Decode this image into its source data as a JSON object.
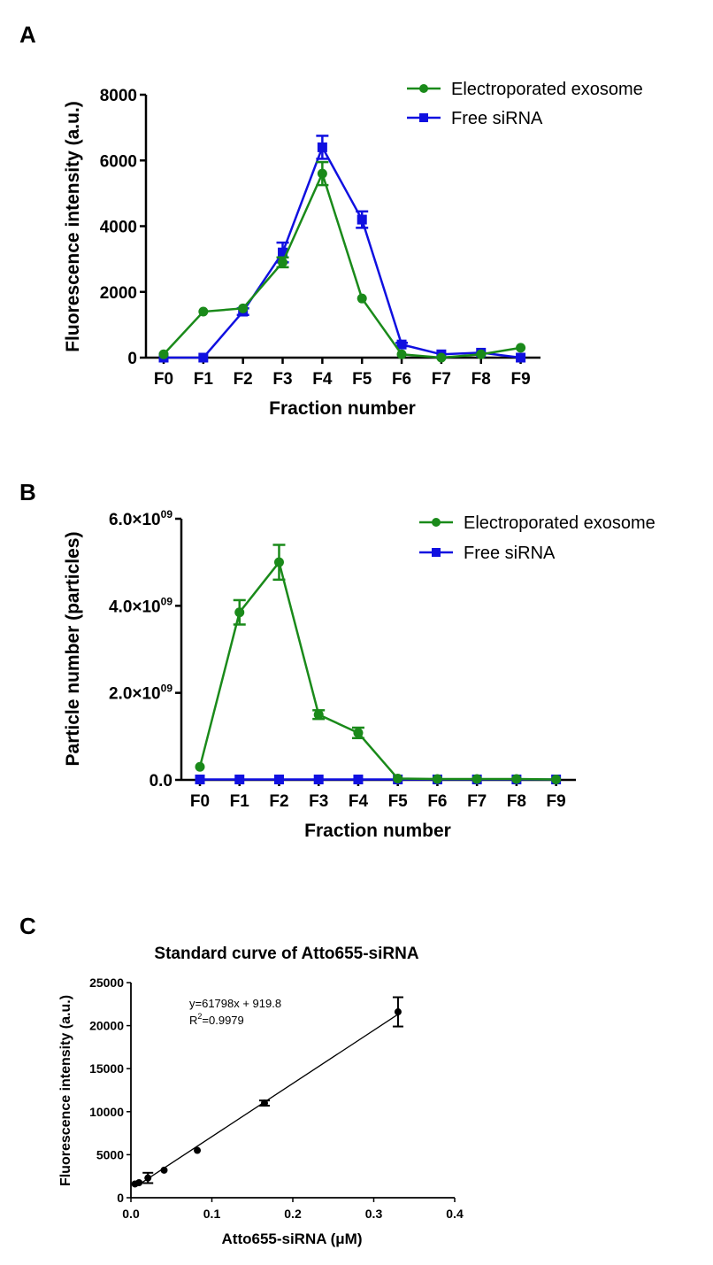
{
  "chart_data": [
    {
      "panel_label": "A",
      "type": "line",
      "title": "",
      "xlabel": "Fraction number",
      "ylabel": "Fluorescence intensity (a.u.)",
      "categories": [
        "F0",
        "F1",
        "F2",
        "F3",
        "F4",
        "F5",
        "F6",
        "F7",
        "F8",
        "F9"
      ],
      "ylim": [
        0,
        8000
      ],
      "yticks": [
        0,
        2000,
        4000,
        6000,
        8000
      ],
      "ytick_labels": [
        "0",
        "2000",
        "4000",
        "6000",
        "8000"
      ],
      "legend_position": "top-right",
      "series": [
        {
          "name": "Electroporated exosome",
          "color": "#1a8a1a",
          "marker": "circle",
          "values": [
            100,
            1400,
            1500,
            2900,
            5600,
            1800,
            100,
            0,
            100,
            300
          ],
          "errors": [
            0,
            0,
            0,
            150,
            350,
            0,
            0,
            0,
            0,
            0
          ]
        },
        {
          "name": "Free siRNA",
          "color": "#1010e0",
          "marker": "square",
          "values": [
            0,
            0,
            1400,
            3200,
            6400,
            4200,
            400,
            100,
            150,
            0
          ],
          "errors": [
            0,
            0,
            100,
            300,
            350,
            250,
            50,
            0,
            0,
            0
          ]
        }
      ]
    },
    {
      "panel_label": "B",
      "type": "line",
      "title": "",
      "xlabel": "Fraction number",
      "ylabel": "Particle number (particles)",
      "categories": [
        "F0",
        "F1",
        "F2",
        "F3",
        "F4",
        "F5",
        "F6",
        "F7",
        "F8",
        "F9"
      ],
      "ylim": [
        0,
        6000000000.0
      ],
      "yticks": [
        0,
        2000000000.0,
        4000000000.0,
        6000000000.0
      ],
      "ytick_labels": [
        "0.0",
        "2.0×10",
        "4.0×10",
        "6.0×10"
      ],
      "ytick_exponent": "09",
      "legend_position": "top-right",
      "series": [
        {
          "name": "Electroporated exosome",
          "color": "#1a8a1a",
          "marker": "circle",
          "values": [
            300000000.0,
            3850000000.0,
            5000000000.0,
            1500000000.0,
            1080000000.0,
            30000000.0,
            20000000.0,
            20000000.0,
            20000000.0,
            10000000.0
          ],
          "errors": [
            0,
            280000000.0,
            400000000.0,
            100000000.0,
            120000000.0,
            0,
            0,
            0,
            0,
            0
          ]
        },
        {
          "name": "Free siRNA",
          "color": "#1010e0",
          "marker": "square",
          "values": [
            10000000.0,
            10000000.0,
            10000000.0,
            10000000.0,
            10000000.0,
            10000000.0,
            10000000.0,
            10000000.0,
            10000000.0,
            10000000.0
          ],
          "errors": [
            0,
            0,
            0,
            0,
            0,
            0,
            0,
            0,
            0,
            0
          ]
        }
      ]
    },
    {
      "panel_label": "C",
      "type": "scatter",
      "title": "Standard curve of Atto655-siRNA",
      "xlabel": "Atto655-siRNA (μM)",
      "ylabel": "Fluorescence intensity (a.u.)",
      "xlim": [
        0,
        0.4
      ],
      "xticks": [
        0,
        0.1,
        0.2,
        0.3,
        0.4
      ],
      "xtick_labels": [
        "0.0",
        "0.1",
        "0.2",
        "0.3",
        "0.4"
      ],
      "ylim": [
        0,
        25000
      ],
      "yticks": [
        0,
        5000,
        10000,
        15000,
        20000,
        25000
      ],
      "ytick_labels": [
        "0",
        "5000",
        "10000",
        "15000",
        "20000",
        "25000"
      ],
      "equation": "y=61798x + 919.8",
      "r2_label": "R",
      "r2_sup": "2",
      "r2_value": "=0.9979",
      "color": "#000000",
      "fit": {
        "slope": 61798,
        "intercept": 919.8,
        "x_range": [
          0.01,
          0.33
        ]
      },
      "points": [
        {
          "x": 0.005,
          "y": 1600,
          "err": 100
        },
        {
          "x": 0.01,
          "y": 1750,
          "err": 100
        },
        {
          "x": 0.021,
          "y": 2300,
          "err": 600
        },
        {
          "x": 0.041,
          "y": 3200,
          "err": 100
        },
        {
          "x": 0.082,
          "y": 5500,
          "err": 100
        },
        {
          "x": 0.165,
          "y": 11000,
          "err": 300
        },
        {
          "x": 0.33,
          "y": 21600,
          "err": 1700
        }
      ]
    }
  ]
}
